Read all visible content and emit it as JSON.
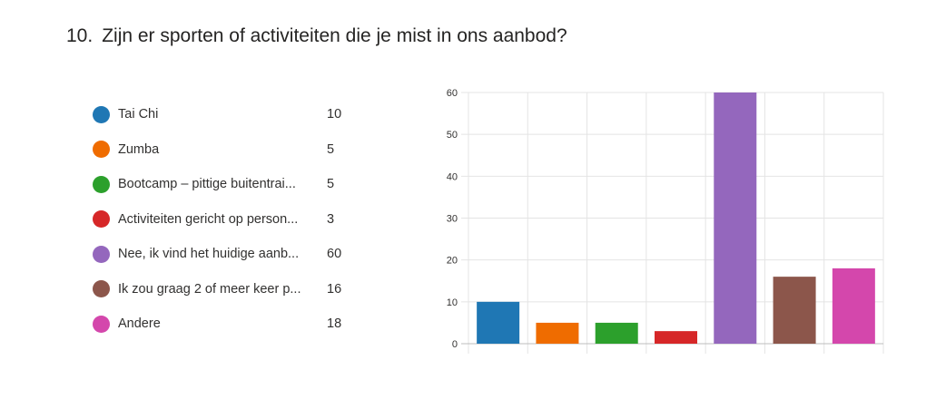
{
  "question": {
    "number": "10.",
    "text": "Zijn er sporten of activiteiten die je mist in ons aanbod?"
  },
  "chart_data": {
    "type": "bar",
    "categories": [
      "Tai Chi",
      "Zumba",
      "Bootcamp – pittige buitentrai...",
      "Activiteiten gericht op person...",
      "Nee, ik vind het huidige aanb...",
      "Ik zou graag 2 of meer keer p...",
      "Andere"
    ],
    "values": [
      10,
      5,
      5,
      3,
      60,
      16,
      18
    ],
    "colors": [
      "#1f77b4",
      "#ef6c00",
      "#2ca02c",
      "#d62728",
      "#9467bd",
      "#8c564b",
      "#d447ac"
    ],
    "ylim": [
      0,
      60
    ],
    "yticks": [
      0,
      10,
      20,
      30,
      40,
      50,
      60
    ],
    "grid": true,
    "legend_placement": "left"
  }
}
